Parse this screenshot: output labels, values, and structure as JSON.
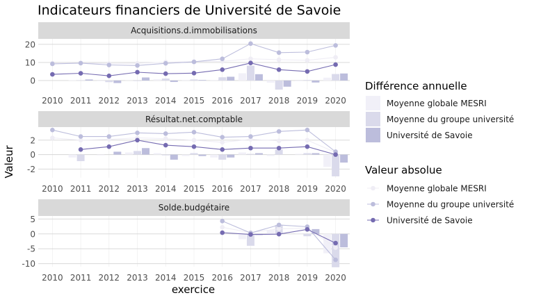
{
  "chart_data": {
    "type": "bar",
    "title": "Indicateurs financiers de Université de Savoie",
    "xlabel": "exercice",
    "ylabel": "Valeur",
    "x": [
      2010,
      2011,
      2012,
      2013,
      2014,
      2015,
      2016,
      2017,
      2018,
      2019,
      2020
    ],
    "panels": [
      {
        "title": "Acquisitions.d.immobilisations",
        "ylim": [
          -5,
          23
        ],
        "yticks": [
          0,
          10,
          20
        ],
        "bars": [
          {
            "name": "Moyenne globale MESRI",
            "values": [
              0,
              0.2,
              -0.4,
              0.1,
              0.7,
              0.3,
              0.3,
              4.0,
              -1.2,
              -0.4,
              1.6
            ]
          },
          {
            "name": "Moyenne du groupe université",
            "values": [
              0,
              0.2,
              -0.9,
              -0.3,
              1.1,
              0.6,
              1.8,
              8.2,
              -5.0,
              0.3,
              3.6
            ]
          },
          {
            "name": "Université de Savoie",
            "values": [
              0,
              0.6,
              -1.4,
              1.7,
              -0.8,
              0.3,
              2.1,
              3.5,
              -3.4,
              -1.1,
              3.9
            ]
          }
        ],
        "lines": [
          {
            "name": "Moyenne globale MESRI",
            "values": [
              9.6,
              9.7,
              9.4,
              9.5,
              10.2,
              10.4,
              10.6,
              12.0,
              11.5,
              11.2,
              12.8
            ]
          },
          {
            "name": "Moyenne du groupe université",
            "values": [
              9.2,
              9.6,
              8.6,
              8.3,
              9.5,
              10.3,
              12.0,
              20.4,
              15.4,
              15.7,
              19.4
            ]
          },
          {
            "name": "Université de Savoie",
            "values": [
              3.4,
              4.0,
              2.6,
              4.6,
              3.8,
              4.1,
              6.0,
              9.7,
              6.0,
              5.0,
              8.8
            ]
          }
        ]
      },
      {
        "title": "Résultat.net.comptable",
        "ylim": [
          -3.2,
          3.8
        ],
        "yticks": [
          -2,
          0,
          2
        ],
        "bars": [
          {
            "name": "Moyenne globale MESRI",
            "values": [
              0,
              -0.4,
              -0.1,
              0.3,
              0.2,
              -0.2,
              -0.4,
              0.3,
              -0.2,
              0.1,
              -1.7
            ]
          },
          {
            "name": "Moyenne du groupe université",
            "values": [
              0,
              -0.9,
              0,
              0.5,
              -0.1,
              0.2,
              -0.7,
              0.1,
              0.7,
              0.2,
              -3.0
            ]
          },
          {
            "name": "Université de Savoie",
            "values": [
              0,
              0,
              0.4,
              0.9,
              -0.7,
              -0.2,
              -0.4,
              0.2,
              0,
              0.2,
              -1.1
            ]
          }
        ],
        "lines": [
          {
            "name": "Moyenne globale MESRI",
            "values": [
              2.3,
              2.0,
              2.1,
              2.3,
              2.2,
              2.0,
              1.7,
              2.1,
              1.9,
              2.0,
              0.3
            ]
          },
          {
            "name": "Moyenne du groupe université",
            "values": [
              3.4,
              2.5,
              2.5,
              3.0,
              2.9,
              3.1,
              2.4,
              2.5,
              3.2,
              3.4,
              0.4
            ]
          },
          {
            "name": "Université de Savoie",
            "values": [
              null,
              0.7,
              1.1,
              2.0,
              1.3,
              1.1,
              0.7,
              0.9,
              0.9,
              1.1,
              0
            ]
          }
        ]
      },
      {
        "title": "Solde.budgétaire",
        "ylim": [
          -11,
          6
        ],
        "yticks": [
          -10,
          -5,
          0,
          5
        ],
        "bars": [
          {
            "name": "Moyenne globale MESRI",
            "values": [
              null,
              null,
              null,
              null,
              null,
              null,
              0,
              -1.8,
              1.3,
              0.2,
              -6.5
            ]
          },
          {
            "name": "Moyenne du groupe université",
            "values": [
              null,
              null,
              null,
              null,
              null,
              null,
              0,
              -4.0,
              3.0,
              -0.8,
              -11.2
            ]
          },
          {
            "name": "Université de Savoie",
            "values": [
              null,
              null,
              null,
              null,
              null,
              null,
              0,
              -0.4,
              0,
              1.6,
              -4.5
            ]
          }
        ],
        "lines": [
          {
            "name": "Moyenne globale MESRI",
            "values": [
              null,
              null,
              null,
              null,
              null,
              null,
              2.2,
              0.4,
              1.7,
              1.9,
              -4.6
            ]
          },
          {
            "name": "Moyenne du groupe université",
            "values": [
              null,
              null,
              null,
              null,
              null,
              null,
              4.3,
              0.3,
              3.0,
              2.4,
              -8.7
            ]
          },
          {
            "name": "Université de Savoie",
            "values": [
              null,
              null,
              null,
              null,
              null,
              null,
              0.4,
              -0.2,
              -0.1,
              1.5,
              -3.1
            ]
          }
        ]
      }
    ],
    "legend_bars": {
      "title": "Différence annuelle",
      "items": [
        "Moyenne globale MESRI",
        "Moyenne du groupe université",
        "Université de Savoie"
      ]
    },
    "legend_lines": {
      "title": "Valeur absolue",
      "items": [
        "Moyenne globale MESRI",
        "Moyenne du groupe université",
        "Université de Savoie"
      ]
    },
    "colors": {
      "bar_fills": [
        "#f1f0f8",
        "#dadaeb",
        "#bcbddc"
      ],
      "line_colors": [
        "#efedf5",
        "#bcbddc",
        "#756bb1"
      ],
      "strip": "#d9d9d9",
      "grid": "#d4d4d4"
    },
    "grid": true,
    "legend_position": "right"
  }
}
